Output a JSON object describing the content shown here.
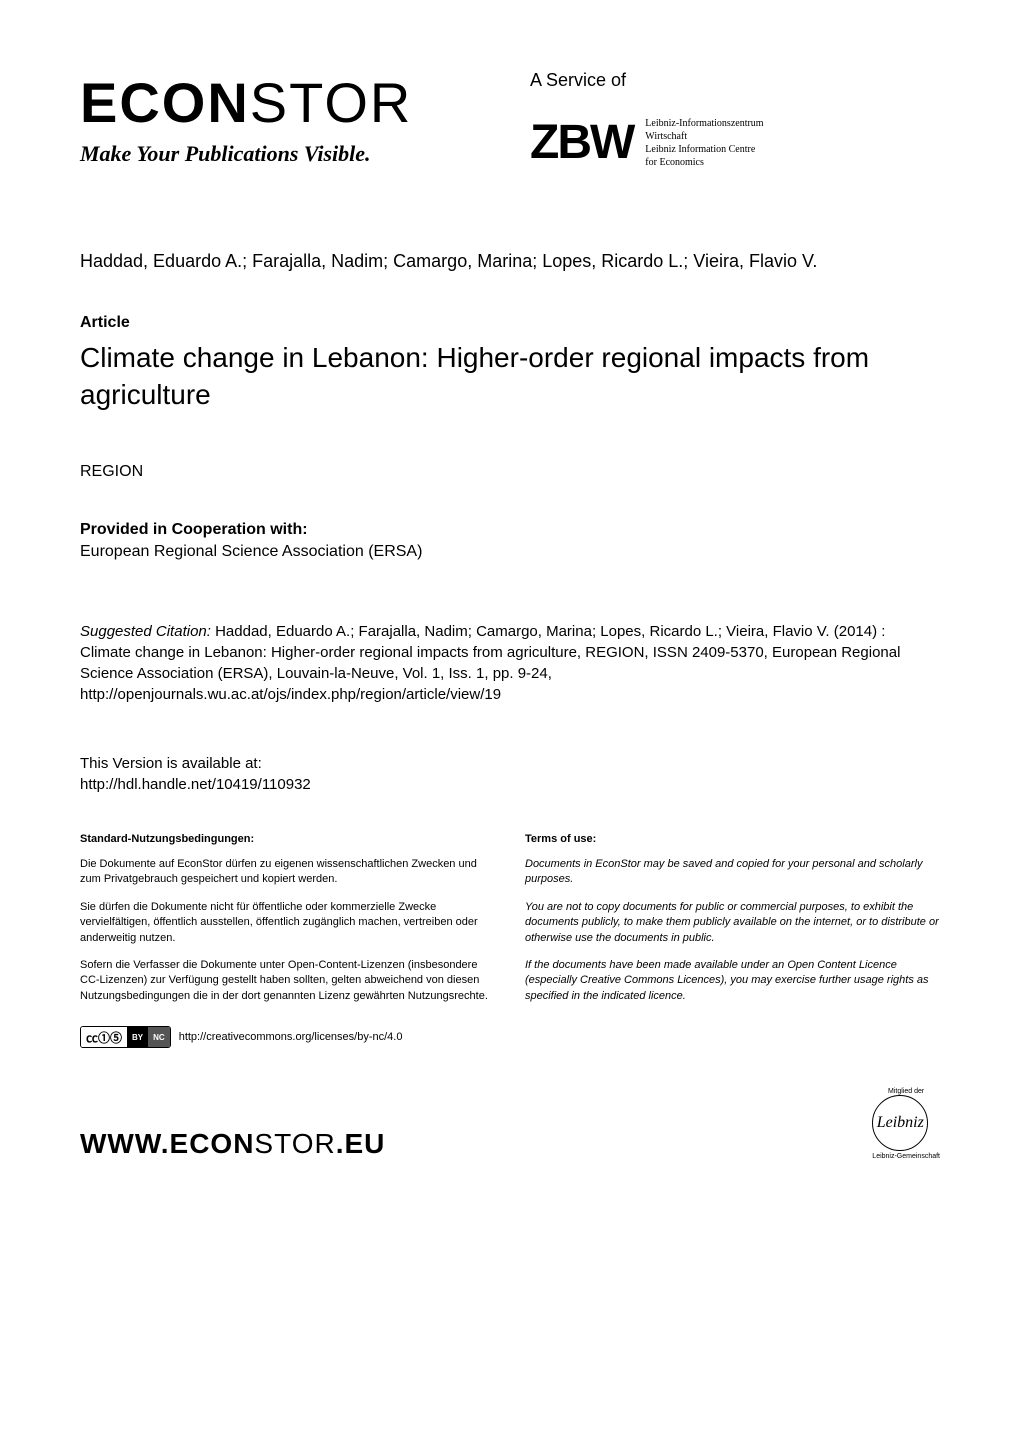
{
  "header": {
    "logo_main": "ECON",
    "logo_light": "STOR",
    "tagline": "Make Your Publications Visible.",
    "service_of": "A Service of",
    "zbw_logo": "ZBW",
    "zbw_line1": "Leibniz-Informationszentrum",
    "zbw_line2": "Wirtschaft",
    "zbw_line3": "Leibniz Information Centre",
    "zbw_line4": "for Economics"
  },
  "meta": {
    "authors": "Haddad, Eduardo A.; Farajalla, Nadim; Camargo, Marina; Lopes, Ricardo L.; Vieira, Flavio V.",
    "article_label": "Article",
    "title": "Climate change in Lebanon: Higher-order regional impacts from agriculture",
    "journal": "REGION",
    "coop_label": "Provided in Cooperation with:",
    "coop_text": "European Regional Science Association (ERSA)",
    "citation_label": "Suggested Citation: ",
    "citation_text": "Haddad, Eduardo A.; Farajalla, Nadim; Camargo, Marina; Lopes, Ricardo L.; Vieira, Flavio V. (2014) : Climate change in Lebanon: Higher-order regional impacts from agriculture, REGION, ISSN 2409-5370, European Regional Science Association (ERSA), Louvain-la-Neuve, Vol. 1, Iss. 1, pp. 9-24,",
    "citation_url": "http://openjournals.wu.ac.at/ojs/index.php/region/article/view/19",
    "version_label": "This Version is available at:",
    "version_url": "http://hdl.handle.net/10419/110932"
  },
  "terms": {
    "de": {
      "header": "Standard-Nutzungsbedingungen:",
      "p1": "Die Dokumente auf EconStor dürfen zu eigenen wissenschaftlichen Zwecken und zum Privatgebrauch gespeichert und kopiert werden.",
      "p2": "Sie dürfen die Dokumente nicht für öffentliche oder kommerzielle Zwecke vervielfältigen, öffentlich ausstellen, öffentlich zugänglich machen, vertreiben oder anderweitig nutzen.",
      "p3": "Sofern die Verfasser die Dokumente unter Open-Content-Lizenzen (insbesondere CC-Lizenzen) zur Verfügung gestellt haben sollten, gelten abweichend von diesen Nutzungsbedingungen die in der dort genannten Lizenz gewährten Nutzungsrechte."
    },
    "en": {
      "header": "Terms of use:",
      "p1": "Documents in EconStor may be saved and copied for your personal and scholarly purposes.",
      "p2": "You are not to copy documents for public or commercial purposes, to exhibit the documents publicly, to make them publicly available on the internet, or to distribute or otherwise use the documents in public.",
      "p3": "If the documents have been made available under an Open Content Licence (especially Creative Commons Licences), you may exercise further usage rights as specified in the indicated licence."
    }
  },
  "cc": {
    "symbols": "㏄①⑤",
    "by": "BY",
    "nc": "NC",
    "url": "http://creativecommons.org/licenses/by-nc/4.0"
  },
  "footer": {
    "url_main": "WWW.ECON",
    "url_light": "STOR",
    "url_end": ".EU",
    "leibniz_top": "Mitglied der",
    "leibniz_sig": "Leibniz",
    "leibniz_bottom": "Leibniz-Gemeinschaft"
  },
  "styling": {
    "background_color": "#ffffff",
    "text_color": "#000000",
    "logo_fontsize": 56,
    "tagline_fontsize": 22,
    "title_fontsize": 28,
    "body_fontsize": 16,
    "citation_fontsize": 15,
    "terms_fontsize": 11,
    "footer_url_fontsize": 28
  }
}
